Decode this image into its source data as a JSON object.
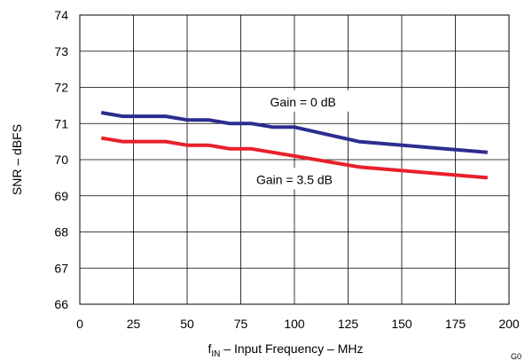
{
  "chart_data": {
    "type": "line",
    "title": "",
    "xlabel_prefix": "f",
    "xlabel_sub": "IN",
    "xlabel_rest": " – Input Frequency – MHz",
    "ylabel": "SNR – dBFS",
    "xlim": [
      0,
      200
    ],
    "ylim": [
      66,
      74
    ],
    "x_ticks": [
      0,
      25,
      50,
      75,
      100,
      125,
      150,
      175,
      200
    ],
    "y_ticks": [
      66,
      67,
      68,
      69,
      70,
      71,
      72,
      73,
      74
    ],
    "x_tick_labels": [
      "0",
      "25",
      "50",
      "75",
      "100",
      "125",
      "150",
      "175",
      "200"
    ],
    "y_tick_labels": [
      "66",
      "67",
      "68",
      "69",
      "70",
      "71",
      "72",
      "73",
      "74"
    ],
    "grid": true,
    "series": [
      {
        "color": "#2b2d8f",
        "x": [
          10,
          20,
          30,
          40,
          50,
          60,
          70,
          80,
          90,
          100,
          130,
          190
        ],
        "y": [
          71.3,
          71.2,
          71.2,
          71.2,
          71.1,
          71.1,
          71.0,
          71.0,
          70.9,
          70.9,
          70.5,
          70.2
        ]
      },
      {
        "color": "#e8202a",
        "x": [
          10,
          20,
          30,
          40,
          50,
          60,
          70,
          80,
          90,
          100,
          130,
          190
        ],
        "y": [
          70.6,
          70.5,
          70.5,
          70.5,
          70.4,
          70.4,
          70.3,
          70.3,
          70.2,
          70.1,
          69.8,
          69.5
        ]
      }
    ],
    "annotations": [
      {
        "text": "Gain = 0 dB",
        "x": 104,
        "y": 71.6
      },
      {
        "text": "Gain = 3.5 dB",
        "x": 100,
        "y": 69.45
      }
    ],
    "figure_id": "G0"
  }
}
